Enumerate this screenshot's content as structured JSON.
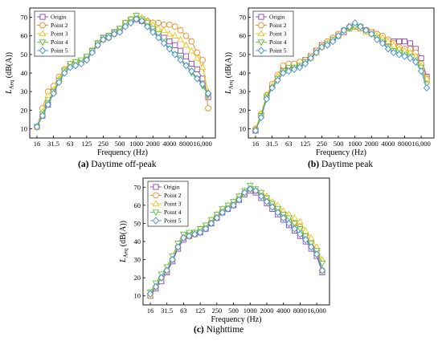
{
  "colors": {
    "Origin": "#8e44ad",
    "Point 2": "#f08a24",
    "Point 3": "#e6c619",
    "Point 4": "#5cc03a",
    "Point 5": "#3d8ed8"
  },
  "chart_data": [
    {
      "type": "line",
      "caption_tag": "(a)",
      "caption_text": " Daytime off-peak",
      "xlabel": "Frequency (Hz)",
      "ylabel_main": "L",
      "ylabel_sub": "Aeq",
      "ylabel_unit": " (dB(A))",
      "ylim": [
        5,
        75
      ],
      "yticks": [
        10,
        20,
        30,
        40,
        50,
        60,
        70
      ],
      "xticks": [
        "16",
        "31.5",
        "63",
        "125",
        "250",
        "500",
        "1000",
        "2000",
        "4000",
        "8000",
        "16,000"
      ],
      "x": [
        16,
        20,
        25,
        31.5,
        40,
        50,
        63,
        80,
        100,
        125,
        160,
        200,
        250,
        315,
        400,
        500,
        630,
        800,
        1000,
        1250,
        1600,
        2000,
        2500,
        3150,
        4000,
        5000,
        6300,
        8000,
        10000,
        12500,
        16000,
        20000
      ],
      "legend_position": "top-left",
      "series": [
        {
          "name": "Origin",
          "values": [
            11,
            17,
            23,
            30,
            36,
            41,
            44,
            45,
            46,
            48,
            52,
            56,
            59,
            60,
            62,
            63,
            66,
            68,
            69,
            68,
            66,
            64,
            62,
            59,
            57,
            55,
            52,
            49,
            45,
            42,
            37,
            27
          ]
        },
        {
          "name": "Point 2",
          "values": [
            11,
            21,
            30,
            33,
            38,
            42,
            44,
            45,
            46,
            48,
            52,
            55,
            58,
            59,
            61,
            63,
            67,
            69,
            70,
            69,
            68,
            67,
            67,
            66,
            66,
            65,
            63,
            60,
            57,
            51,
            47,
            21
          ]
        },
        {
          "name": "Point 3",
          "values": [
            11,
            19,
            28,
            31,
            37,
            42,
            45,
            46,
            46,
            48,
            52,
            56,
            58,
            60,
            62,
            64,
            67,
            69,
            71,
            70,
            68,
            66,
            64,
            63,
            61,
            60,
            58,
            55,
            52,
            48,
            43,
            30
          ]
        },
        {
          "name": "Point 4",
          "values": [
            11,
            18,
            24,
            30,
            36,
            41,
            45,
            46,
            47,
            49,
            52,
            56,
            59,
            60,
            62,
            64,
            67,
            69,
            71,
            69,
            67,
            64,
            61,
            57,
            53,
            50,
            48,
            44,
            40,
            37,
            33,
            28
          ]
        },
        {
          "name": "Point 5",
          "values": [
            11,
            17,
            23,
            29,
            35,
            40,
            43,
            44,
            45,
            47,
            51,
            55,
            58,
            59,
            61,
            62,
            65,
            67,
            69,
            68,
            65,
            62,
            59,
            56,
            53,
            50,
            47,
            44,
            41,
            37,
            34,
            29
          ]
        }
      ]
    },
    {
      "type": "line",
      "caption_tag": "(b)",
      "caption_text": " Daytime peak",
      "xlabel": "Frequency (Hz)",
      "ylabel_main": "L",
      "ylabel_sub": "Aeq",
      "ylabel_unit": " (dB(A))",
      "ylim": [
        5,
        75
      ],
      "yticks": [
        10,
        20,
        30,
        40,
        50,
        60,
        70
      ],
      "xticks": [
        "16",
        "31.5",
        "63",
        "125",
        "250",
        "500",
        "1000",
        "2000",
        "4000",
        "8000",
        "16,000"
      ],
      "x": [
        16,
        20,
        25,
        31.5,
        40,
        50,
        63,
        80,
        100,
        125,
        160,
        200,
        250,
        315,
        400,
        500,
        630,
        800,
        1000,
        1250,
        1600,
        2000,
        2500,
        3150,
        4000,
        5000,
        6300,
        8000,
        10000,
        12500,
        16000,
        20000
      ],
      "legend_position": "top-left",
      "series": [
        {
          "name": "Origin",
          "values": [
            9,
            17,
            27,
            33,
            38,
            42,
            44,
            44,
            45,
            47,
            49,
            52,
            55,
            56,
            58,
            60,
            62,
            64,
            65,
            64,
            63,
            62,
            60,
            58,
            57,
            57,
            57,
            57,
            56,
            53,
            48,
            38
          ]
        },
        {
          "name": "Point 2",
          "values": [
            10,
            18,
            28,
            34,
            39,
            44,
            45,
            45,
            46,
            47,
            49,
            52,
            55,
            57,
            59,
            61,
            63,
            65,
            66,
            65,
            63,
            62,
            61,
            60,
            58,
            56,
            54,
            53,
            53,
            51,
            45,
            37
          ]
        },
        {
          "name": "Point 3",
          "values": [
            10,
            18,
            28,
            33,
            38,
            41,
            42,
            43,
            44,
            46,
            48,
            51,
            54,
            56,
            58,
            60,
            63,
            64,
            65,
            64,
            62,
            61,
            60,
            59,
            57,
            55,
            53,
            52,
            51,
            49,
            44,
            37
          ]
        },
        {
          "name": "Point 4",
          "values": [
            9,
            17,
            27,
            32,
            37,
            41,
            43,
            43,
            44,
            46,
            48,
            51,
            54,
            56,
            58,
            60,
            63,
            64,
            65,
            65,
            63,
            61,
            59,
            57,
            54,
            52,
            51,
            50,
            49,
            47,
            43,
            34
          ]
        },
        {
          "name": "Point 5",
          "values": [
            9,
            16,
            26,
            32,
            36,
            40,
            41,
            42,
            43,
            45,
            48,
            51,
            54,
            55,
            57,
            60,
            63,
            65,
            67,
            65,
            63,
            61,
            58,
            56,
            53,
            51,
            50,
            49,
            48,
            46,
            41,
            32
          ]
        }
      ]
    },
    {
      "type": "line",
      "caption_tag": "(c)",
      "caption_text": " Nighttime",
      "xlabel": "Frequency (Hz)",
      "ylabel_main": "L",
      "ylabel_sub": "Aeq",
      "ylabel_unit": " (dB(A))",
      "ylim": [
        5,
        75
      ],
      "yticks": [
        10,
        20,
        30,
        40,
        50,
        60,
        70
      ],
      "xticks": [
        "16",
        "31.5",
        "63",
        "125",
        "250",
        "500",
        "1000",
        "2000",
        "4000",
        "8000",
        "16,000"
      ],
      "x": [
        16,
        20,
        25,
        31.5,
        40,
        50,
        63,
        80,
        100,
        125,
        160,
        200,
        250,
        315,
        400,
        500,
        630,
        800,
        1000,
        1250,
        1600,
        2000,
        2500,
        3150,
        4000,
        5000,
        6300,
        8000,
        10000,
        12500,
        16000,
        20000
      ],
      "legend_position": "top-left",
      "series": [
        {
          "name": "Origin",
          "values": [
            10,
            14,
            18,
            23,
            29,
            36,
            41,
            43,
            44,
            45,
            47,
            50,
            53,
            56,
            58,
            60,
            63,
            66,
            68,
            67,
            64,
            61,
            58,
            55,
            52,
            49,
            46,
            43,
            40,
            36,
            32,
            23
          ]
        },
        {
          "name": "Point 2",
          "values": [
            10,
            15,
            20,
            24,
            30,
            37,
            42,
            43,
            44,
            46,
            48,
            51,
            54,
            57,
            59,
            61,
            64,
            67,
            69,
            68,
            66,
            63,
            60,
            57,
            54,
            52,
            50,
            48,
            44,
            40,
            35,
            24
          ]
        },
        {
          "name": "Point 3",
          "values": [
            11,
            16,
            21,
            25,
            31,
            38,
            43,
            44,
            45,
            47,
            49,
            52,
            55,
            58,
            60,
            62,
            65,
            68,
            70,
            69,
            67,
            65,
            62,
            60,
            57,
            55,
            53,
            51,
            46,
            42,
            37,
            30
          ]
        },
        {
          "name": "Point 4",
          "values": [
            12,
            17,
            22,
            26,
            32,
            39,
            44,
            45,
            45,
            47,
            49,
            52,
            55,
            58,
            60,
            62,
            65,
            68,
            71,
            69,
            67,
            64,
            61,
            58,
            55,
            53,
            50,
            47,
            43,
            39,
            35,
            28
          ]
        },
        {
          "name": "Point 5",
          "values": [
            11,
            15,
            20,
            24,
            30,
            37,
            42,
            43,
            44,
            45,
            47,
            50,
            53,
            56,
            58,
            60,
            63,
            67,
            69,
            68,
            65,
            62,
            59,
            56,
            53,
            50,
            47,
            44,
            41,
            37,
            33,
            24
          ]
        }
      ]
    }
  ]
}
